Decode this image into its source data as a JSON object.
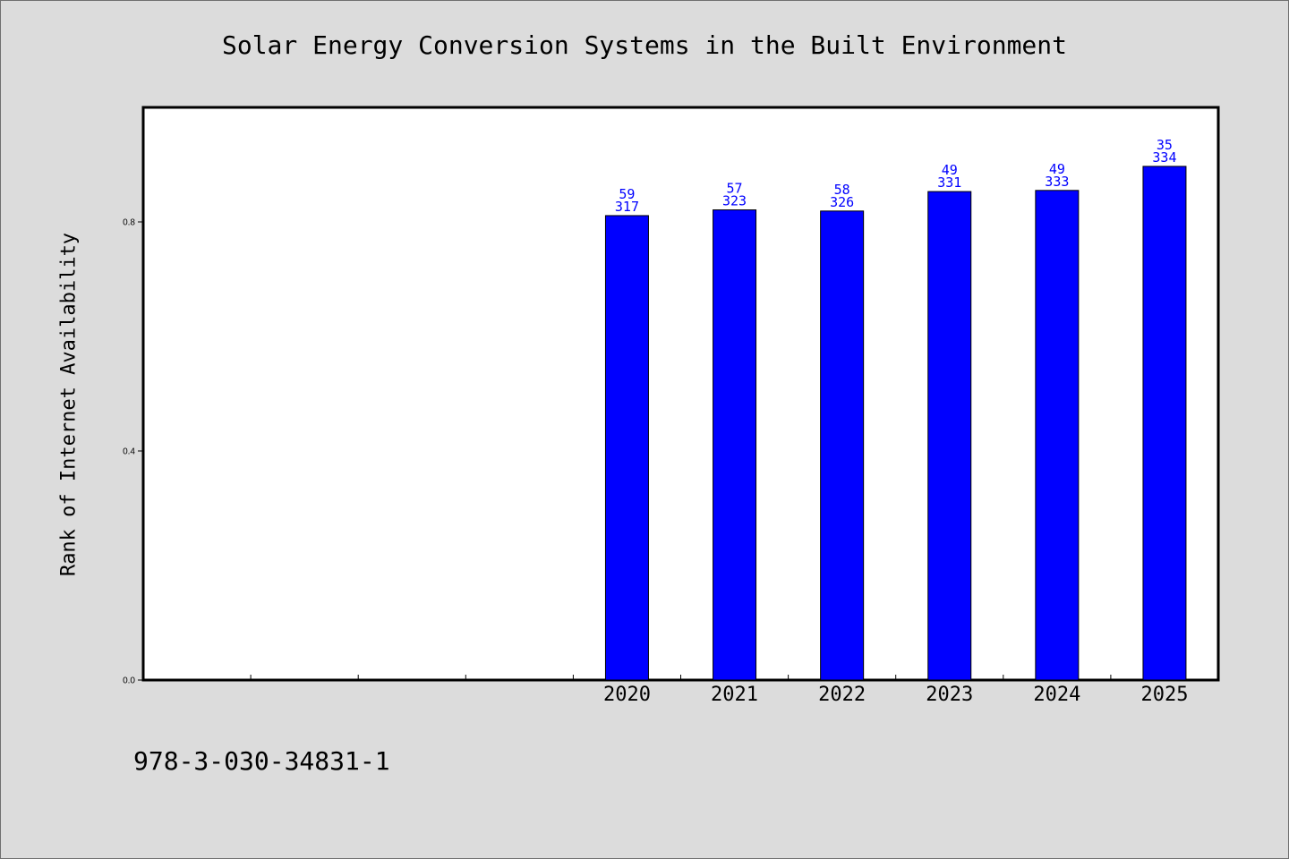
{
  "colors": {
    "background": "#dcdcdc",
    "plot_background": "#ffffff",
    "bar": "#0000ff",
    "bar_label": "#0000ff"
  },
  "footer": {
    "isbn": "978-3-030-34831-1"
  },
  "chart_data": {
    "type": "bar",
    "title": "Solar Energy Conversion Systems in the Built Environment",
    "xlabel": "",
    "ylabel": "Rank of Internet Availability",
    "ylim": [
      0,
      1.0
    ],
    "yticks": [
      0.0,
      0.4,
      0.8
    ],
    "ytick_labels": [
      "0.0",
      "0.4",
      "0.8"
    ],
    "x_slots": 10,
    "categories": [
      "2020",
      "2021",
      "2022",
      "2023",
      "2024",
      "2025"
    ],
    "category_slot_start": 4,
    "values": [
      0.811,
      0.821,
      0.819,
      0.853,
      0.855,
      0.897
    ],
    "bar_labels": [
      [
        "59",
        "317"
      ],
      [
        "57",
        "323"
      ],
      [
        "58",
        "326"
      ],
      [
        "49",
        "331"
      ],
      [
        "49",
        "333"
      ],
      [
        "35",
        "334"
      ]
    ],
    "grid": false,
    "legend": "none"
  }
}
